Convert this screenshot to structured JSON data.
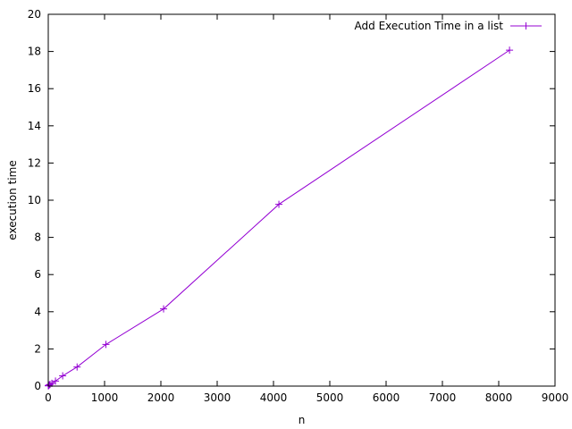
{
  "chart_data": {
    "type": "line",
    "xlabel": "n",
    "ylabel": "execution time",
    "xlim": [
      0,
      9000
    ],
    "ylim": [
      0,
      20
    ],
    "x_ticks": [
      0,
      1000,
      2000,
      3000,
      4000,
      5000,
      6000,
      7000,
      8000,
      9000
    ],
    "y_ticks": [
      0,
      2,
      4,
      6,
      8,
      10,
      12,
      14,
      16,
      18,
      20
    ],
    "grid": false,
    "legend_position": "top-right",
    "series": [
      {
        "name": "Add Execution Time in a list",
        "color": "#9400d3",
        "marker": "plus",
        "x": [
          1,
          2,
          4,
          8,
          16,
          32,
          64,
          128,
          256,
          512,
          1024,
          2048,
          4096,
          8192
        ],
        "y": [
          0.02,
          0.02,
          0.03,
          0.04,
          0.06,
          0.09,
          0.15,
          0.27,
          0.55,
          1.03,
          2.24,
          4.15,
          9.78,
          18.07
        ]
      }
    ]
  }
}
